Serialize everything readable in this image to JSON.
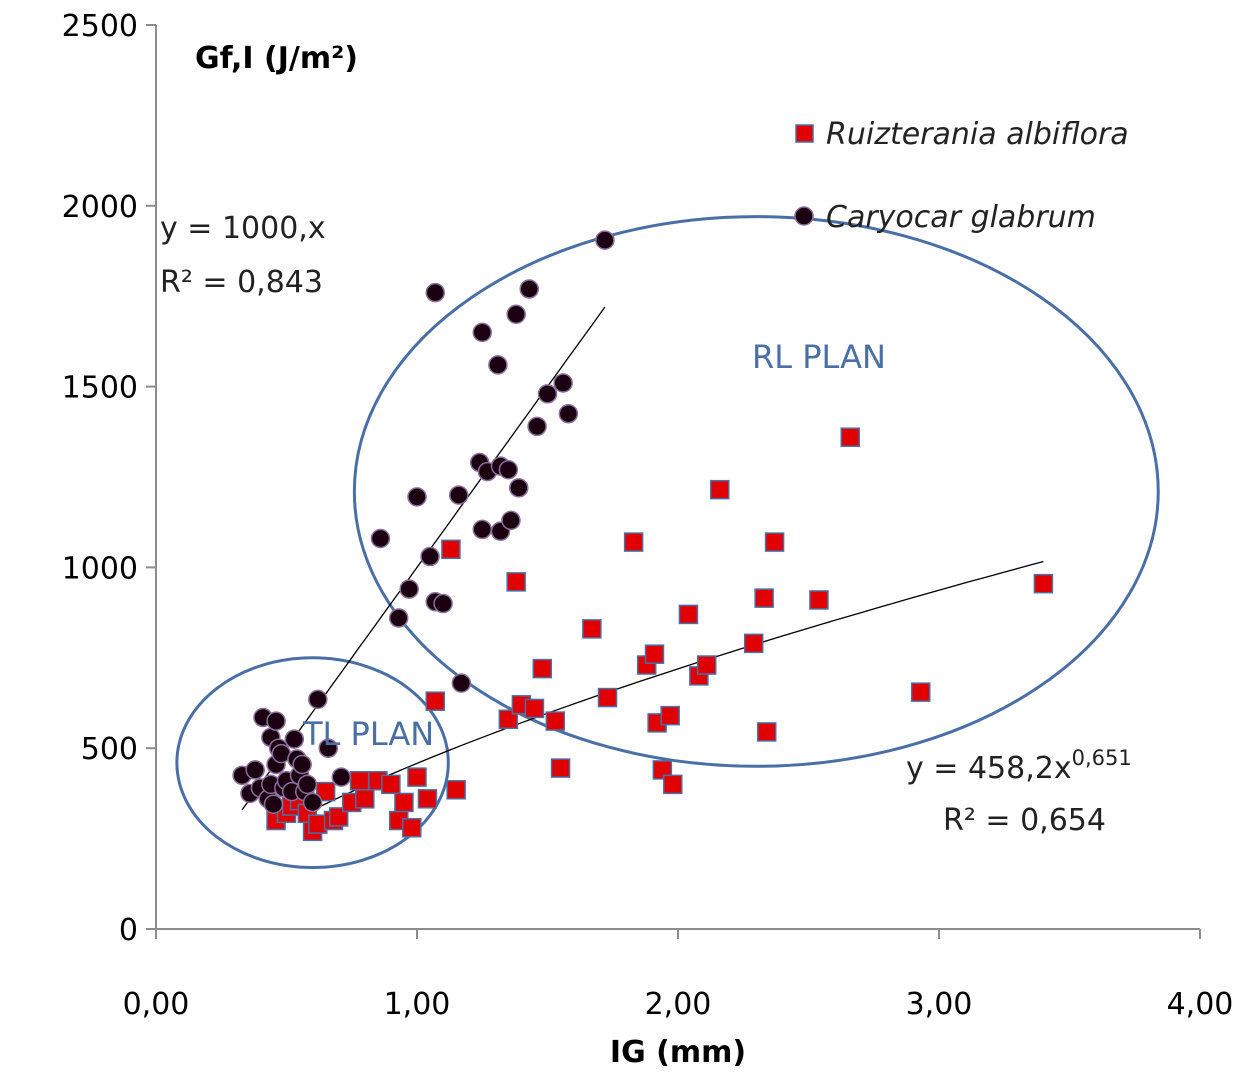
{
  "chart_data": {
    "type": "scatter",
    "title": "Gf,I (J/m²)",
    "xlabel": "IG (mm)",
    "ylabel": "",
    "xlim": [
      0,
      4
    ],
    "ylim": [
      0,
      2500
    ],
    "x_ticks": [
      "0,00",
      "1,00",
      "2,00",
      "3,00",
      "4,00"
    ],
    "y_ticks": [
      "0",
      "500",
      "1000",
      "1500",
      "2000",
      "2500"
    ],
    "grid": false,
    "legend_position": "top-right",
    "series": [
      {
        "name": "Ruizterania albiflora",
        "marker": "square",
        "color": "#e00000",
        "points": [
          [
            0.46,
            300
          ],
          [
            0.5,
            320
          ],
          [
            0.52,
            340
          ],
          [
            0.55,
            355
          ],
          [
            0.58,
            320
          ],
          [
            0.6,
            270
          ],
          [
            0.62,
            290
          ],
          [
            0.65,
            380
          ],
          [
            0.68,
            300
          ],
          [
            0.7,
            310
          ],
          [
            0.75,
            350
          ],
          [
            0.78,
            410
          ],
          [
            0.8,
            360
          ],
          [
            0.85,
            410
          ],
          [
            0.9,
            400
          ],
          [
            0.93,
            300
          ],
          [
            0.95,
            350
          ],
          [
            0.98,
            280
          ],
          [
            1.0,
            420
          ],
          [
            1.04,
            360
          ],
          [
            1.07,
            630
          ],
          [
            1.15,
            385
          ],
          [
            1.13,
            1050
          ],
          [
            1.35,
            580
          ],
          [
            1.38,
            960
          ],
          [
            1.4,
            620
          ],
          [
            1.45,
            610
          ],
          [
            1.48,
            720
          ],
          [
            1.53,
            575
          ],
          [
            1.55,
            445
          ],
          [
            1.67,
            830
          ],
          [
            1.73,
            640
          ],
          [
            1.83,
            1070
          ],
          [
            1.88,
            730
          ],
          [
            1.91,
            760
          ],
          [
            1.92,
            570
          ],
          [
            1.94,
            440
          ],
          [
            1.97,
            590
          ],
          [
            1.98,
            400
          ],
          [
            2.04,
            870
          ],
          [
            2.08,
            700
          ],
          [
            2.11,
            730
          ],
          [
            2.16,
            1215
          ],
          [
            2.29,
            790
          ],
          [
            2.33,
            915
          ],
          [
            2.34,
            545
          ],
          [
            2.37,
            1070
          ],
          [
            2.54,
            910
          ],
          [
            2.66,
            1360
          ],
          [
            2.93,
            655
          ],
          [
            3.4,
            955
          ]
        ]
      },
      {
        "name": "Caryocar glabrum",
        "marker": "circle",
        "color": "#1a0010",
        "points": [
          [
            0.33,
            425
          ],
          [
            0.36,
            375
          ],
          [
            0.38,
            440
          ],
          [
            0.4,
            390
          ],
          [
            0.41,
            585
          ],
          [
            0.43,
            360
          ],
          [
            0.44,
            530
          ],
          [
            0.44,
            400
          ],
          [
            0.45,
            345
          ],
          [
            0.46,
            575
          ],
          [
            0.46,
            455
          ],
          [
            0.47,
            500
          ],
          [
            0.48,
            485
          ],
          [
            0.49,
            390
          ],
          [
            0.5,
            410
          ],
          [
            0.52,
            380
          ],
          [
            0.53,
            525
          ],
          [
            0.54,
            470
          ],
          [
            0.55,
            425
          ],
          [
            0.56,
            455
          ],
          [
            0.57,
            380
          ],
          [
            0.58,
            400
          ],
          [
            0.6,
            350
          ],
          [
            0.62,
            635
          ],
          [
            0.66,
            500
          ],
          [
            0.71,
            420
          ],
          [
            0.86,
            1080
          ],
          [
            0.93,
            860
          ],
          [
            0.97,
            940
          ],
          [
            1.0,
            1195
          ],
          [
            1.05,
            1030
          ],
          [
            1.07,
            905
          ],
          [
            1.07,
            1760
          ],
          [
            1.1,
            900
          ],
          [
            1.16,
            1200
          ],
          [
            1.17,
            680
          ],
          [
            1.24,
            1290
          ],
          [
            1.25,
            1105
          ],
          [
            1.25,
            1650
          ],
          [
            1.27,
            1265
          ],
          [
            1.31,
            1560
          ],
          [
            1.32,
            1100
          ],
          [
            1.32,
            1280
          ],
          [
            1.35,
            1270
          ],
          [
            1.36,
            1130
          ],
          [
            1.38,
            1700
          ],
          [
            1.39,
            1220
          ],
          [
            1.43,
            1770
          ],
          [
            1.46,
            1390
          ],
          [
            1.5,
            1480
          ],
          [
            1.56,
            1510
          ],
          [
            1.58,
            1425
          ],
          [
            1.72,
            1905
          ]
        ]
      }
    ],
    "trendlines": [
      {
        "series": "Caryocar glabrum",
        "x": [
          0.33,
          1.72
        ],
        "formula": "y = 1000,x",
        "r2": "R² = 0,843",
        "kind": "linear",
        "slope": 1000
      },
      {
        "series": "Ruizterania albiflora",
        "x": [
          0.55,
          3.4
        ],
        "formula": "y = 458,2x",
        "formula_exp": "0,651",
        "r2": "R² = 0,654",
        "kind": "power",
        "coef": 458.2,
        "exponent": 0.651
      }
    ],
    "annotations": [
      {
        "label": "RL PLAN",
        "ellipse": {
          "cx": 2.3,
          "cy": 1210,
          "rx": 1.54,
          "ry": 760
        }
      },
      {
        "label": "TL PLAN",
        "ellipse": {
          "cx": 0.6,
          "cy": 460,
          "rx": 0.52,
          "ry": 290
        }
      }
    ]
  }
}
